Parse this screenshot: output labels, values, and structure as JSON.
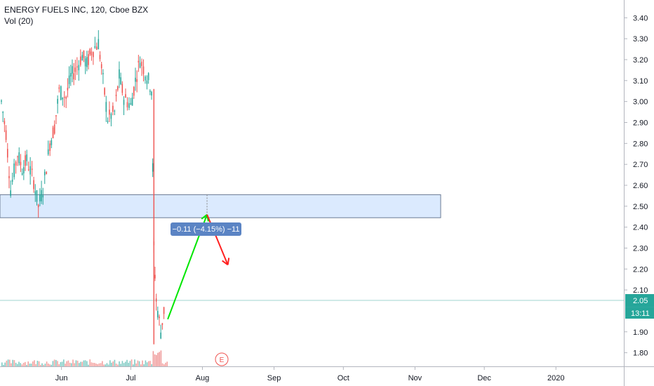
{
  "header": {
    "symbol_line": "ENERGY FUELS INC, 120, Cboe BZX",
    "volume_line": "Vol (20)"
  },
  "chart_data": {
    "type": "candlestick",
    "title": "ENERGY FUELS INC, 120, Cboe BZX",
    "price_axis": {
      "ylim": [
        1.735,
        3.485
      ],
      "ticks": [
        "3.40",
        "3.30",
        "3.20",
        "3.10",
        "3.00",
        "2.90",
        "2.80",
        "2.70",
        "2.60",
        "2.50",
        "2.40",
        "2.30",
        "2.20",
        "2.10",
        "1.90",
        "1.80"
      ],
      "current_price_label": "2.05",
      "countdown_label": "13:11"
    },
    "time_axis": {
      "ticks": [
        {
          "label": "Jun",
          "date": "2019-06-01"
        },
        {
          "label": "Jul",
          "date": "2019-07-01"
        },
        {
          "label": "Aug",
          "date": "2019-08-01"
        },
        {
          "label": "Sep",
          "date": "2019-09-01"
        },
        {
          "label": "Oct",
          "date": "2019-10-01"
        },
        {
          "label": "Nov",
          "date": "2019-11-01"
        },
        {
          "label": "Dec",
          "date": "2019-12-01"
        },
        {
          "label": "2020",
          "date": "2020-01-01"
        }
      ]
    },
    "price_path": [
      {
        "date": "2019-05-06",
        "price": 3.0
      },
      {
        "date": "2019-05-08",
        "price": 2.85
      },
      {
        "date": "2019-05-10",
        "price": 2.58
      },
      {
        "date": "2019-05-13",
        "price": 2.75
      },
      {
        "date": "2019-05-15",
        "price": 2.68
      },
      {
        "date": "2019-05-17",
        "price": 2.72
      },
      {
        "date": "2019-05-20",
        "price": 2.62
      },
      {
        "date": "2019-05-22",
        "price": 2.5
      },
      {
        "date": "2019-05-24",
        "price": 2.58
      },
      {
        "date": "2019-05-27",
        "price": 2.8
      },
      {
        "date": "2019-05-29",
        "price": 2.88
      },
      {
        "date": "2019-05-31",
        "price": 3.05
      },
      {
        "date": "2019-06-03",
        "price": 3.02
      },
      {
        "date": "2019-06-05",
        "price": 3.12
      },
      {
        "date": "2019-06-07",
        "price": 3.15
      },
      {
        "date": "2019-06-10",
        "price": 3.22
      },
      {
        "date": "2019-06-12",
        "price": 3.18
      },
      {
        "date": "2019-06-14",
        "price": 3.24
      },
      {
        "date": "2019-06-17",
        "price": 3.28
      },
      {
        "date": "2019-06-19",
        "price": 3.1
      },
      {
        "date": "2019-06-21",
        "price": 2.92
      },
      {
        "date": "2019-06-24",
        "price": 2.95
      },
      {
        "date": "2019-06-26",
        "price": 3.12
      },
      {
        "date": "2019-06-28",
        "price": 3.02
      },
      {
        "date": "2019-07-01",
        "price": 2.98
      },
      {
        "date": "2019-07-03",
        "price": 3.1
      },
      {
        "date": "2019-07-05",
        "price": 3.2
      },
      {
        "date": "2019-07-08",
        "price": 3.12
      },
      {
        "date": "2019-07-10",
        "price": 3.06
      },
      {
        "date": "2019-07-11",
        "price": 2.3
      },
      {
        "date": "2019-07-12",
        "price": 2.05
      },
      {
        "date": "2019-07-14",
        "price": 1.9
      },
      {
        "date": "2019-07-16",
        "price": 2.05
      }
    ],
    "zone": {
      "from": 2.445,
      "to": 2.555,
      "color": "#dbeafe"
    },
    "projection": {
      "up_arrow": {
        "from_date": "2019-07-17",
        "from_price": 1.96,
        "to_date": "2019-08-03",
        "to_price": 2.46,
        "color": "#00e600"
      },
      "down_arrow": {
        "from_date": "2019-08-03",
        "from_price": 2.46,
        "to_date": "2019-08-12",
        "to_price": 2.22,
        "color": "#ff2020"
      },
      "measure_label": "−0.11 (−4.15%) −11"
    },
    "earnings_marker": "E",
    "colors": {
      "up": "#26a69a",
      "down": "#ef5350",
      "line": "#ef5350",
      "price_tag": "#26a69a",
      "measure_label": "#5b84c4"
    }
  }
}
